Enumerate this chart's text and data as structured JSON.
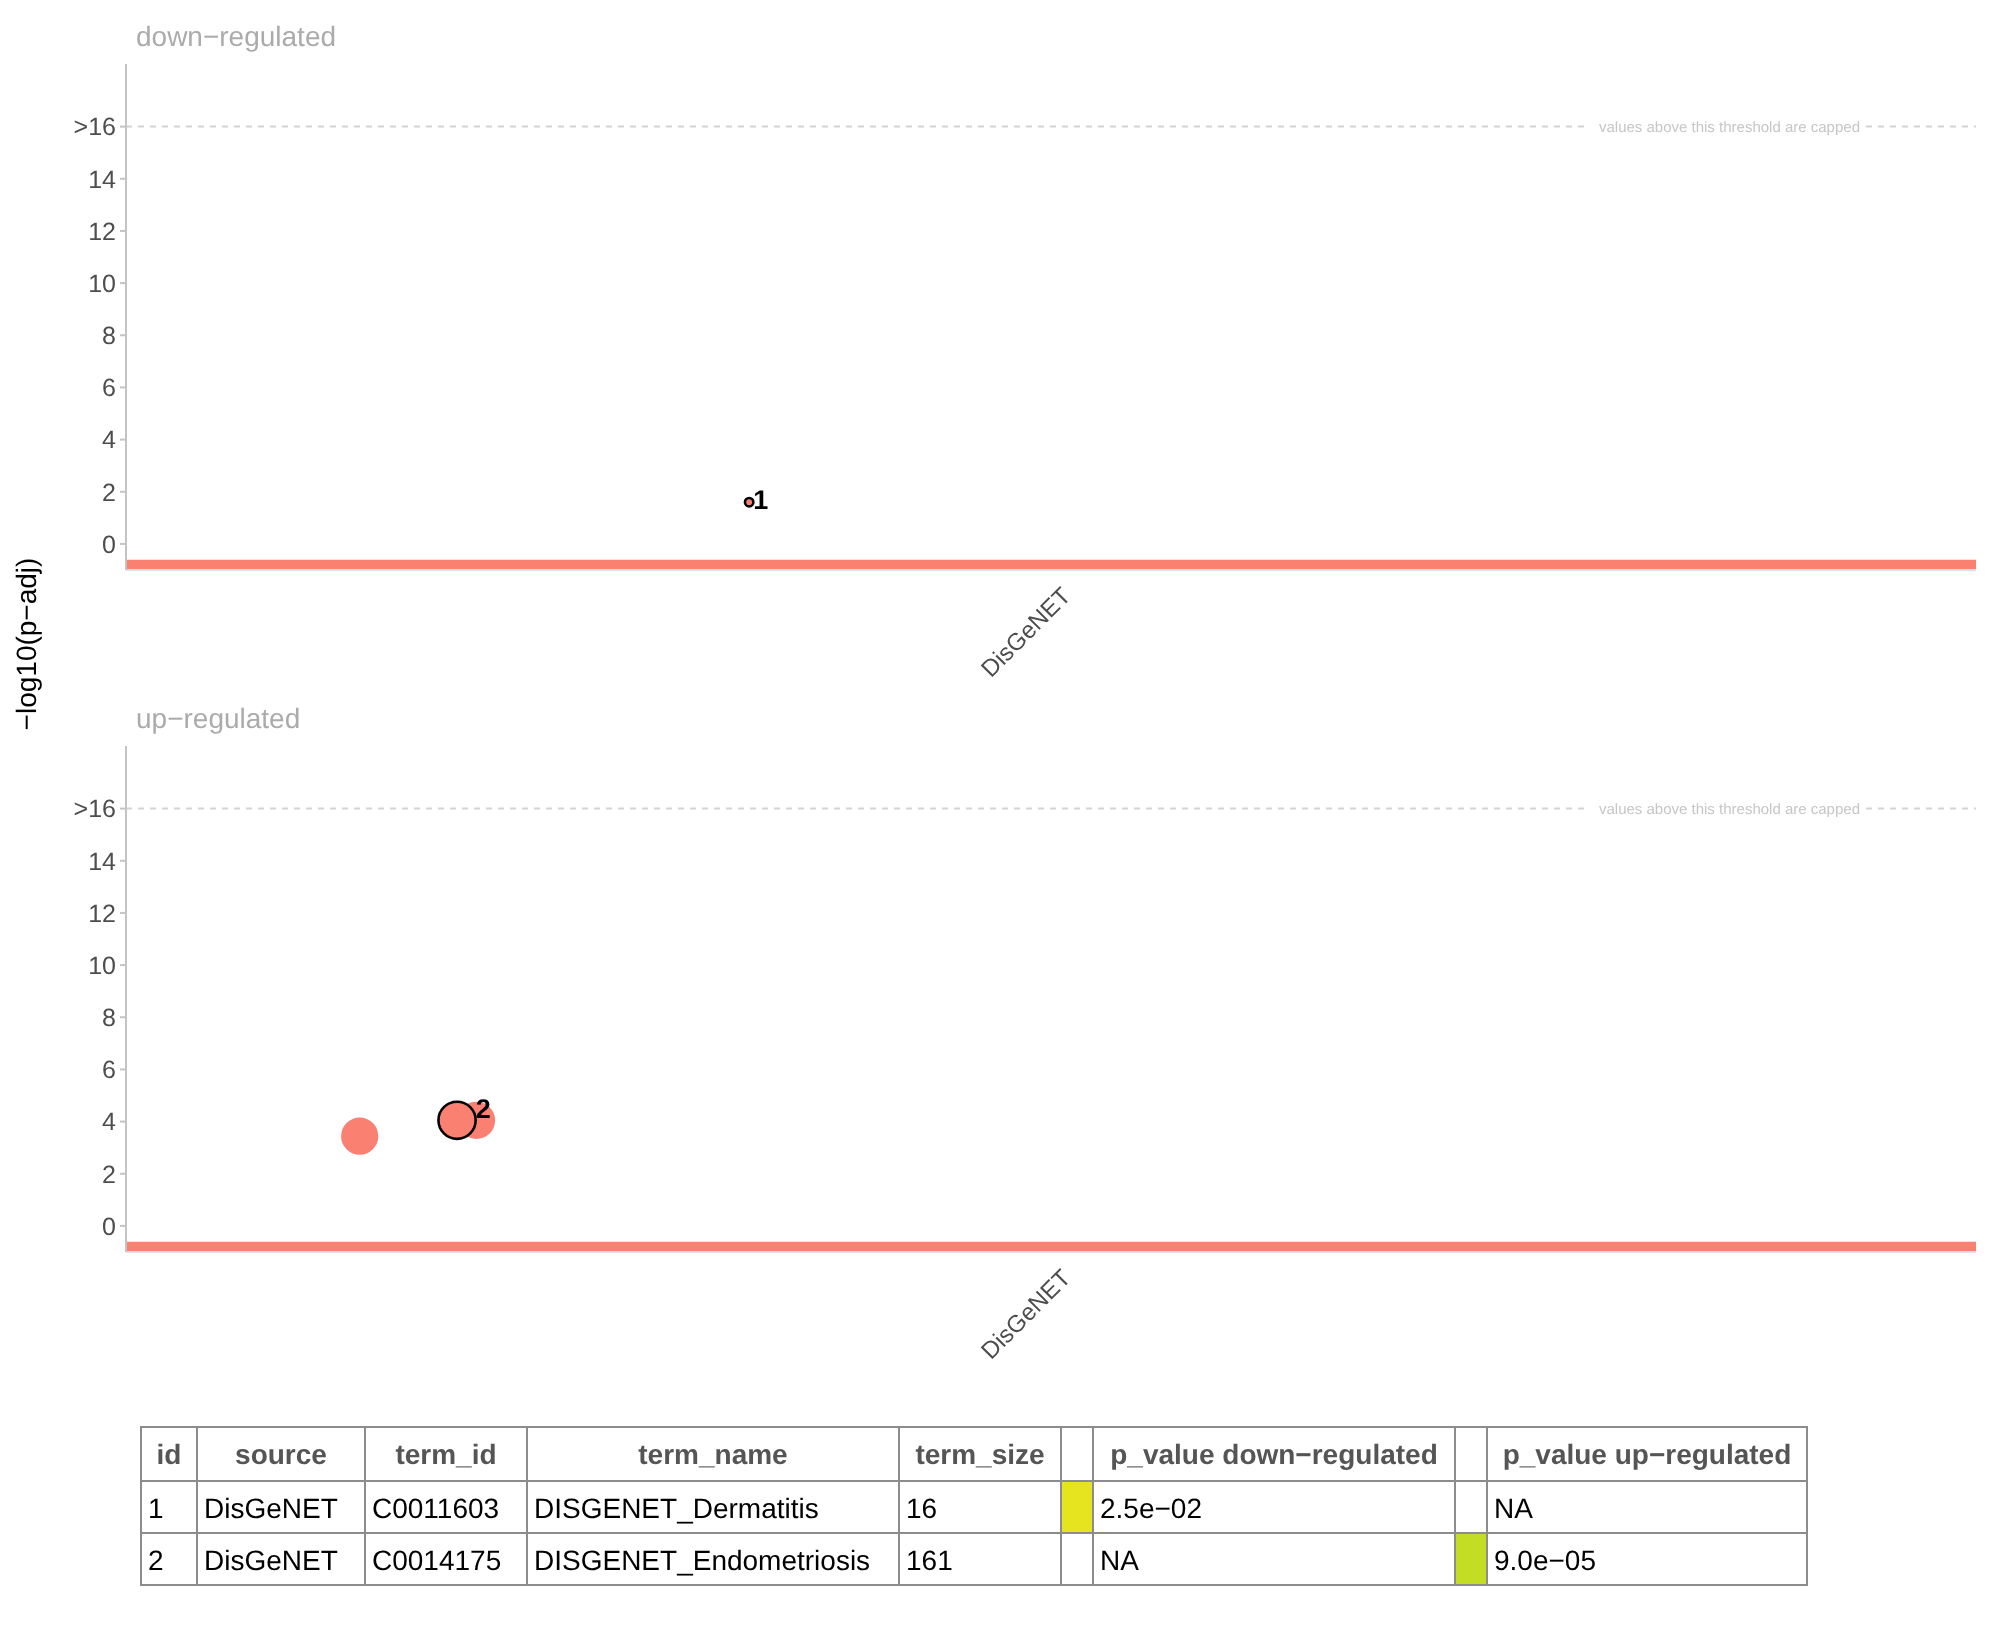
{
  "chart_data": [
    {
      "type": "scatter",
      "title": "down−regulated",
      "ylabel": "−log10(p−adj)",
      "categories": [
        null,
        null,
        null,
        null,
        null,
        null,
        null,
        null,
        null,
        null,
        null,
        null,
        null,
        null,
        null,
        null,
        null,
        null,
        null,
        null,
        null,
        null,
        null,
        null,
        null,
        null,
        null,
        null,
        null,
        null,
        null,
        null,
        null,
        null,
        null,
        null,
        null,
        null,
        null,
        null,
        null,
        null,
        null,
        null,
        null,
        null,
        null,
        null,
        "DisGeNET",
        null,
        null,
        null,
        null,
        null,
        null,
        null,
        null,
        null,
        null,
        null,
        null,
        null,
        null,
        null,
        null,
        null,
        null,
        null,
        null,
        null,
        null,
        null,
        null,
        null,
        null,
        null,
        null,
        null,
        null,
        null,
        null,
        null,
        null,
        null,
        null,
        null,
        null,
        null,
        null,
        null,
        null,
        null,
        null,
        null,
        null,
        null,
        null,
        null,
        null,
        null
      ],
      "ylim": [
        -1,
        18.4
      ],
      "yticks": [
        0,
        2,
        4,
        6,
        8,
        10,
        12,
        14,
        {
          "value": 16,
          "label": ">16"
        }
      ],
      "series": [
        {
          "type": "line",
          "color": "#fa8072",
          "values": [
            -0.8,
            -0.8,
            -0.8,
            -0.8,
            -0.8,
            -0.8,
            -0.8,
            -0.8,
            -0.8,
            -0.8,
            -0.8,
            -0.8,
            -0.8,
            -0.8,
            -0.8,
            -0.8,
            -0.8,
            -0.8,
            -0.8,
            -0.8,
            -0.8,
            -0.8,
            -0.8,
            -0.8,
            -0.8,
            -0.8,
            -0.8,
            -0.8,
            -0.8,
            -0.8,
            -0.8,
            -0.8,
            -0.8,
            -0.8,
            -0.8,
            -0.8,
            -0.8,
            -0.8,
            -0.8,
            -0.8,
            -0.8,
            -0.8,
            -0.8,
            -0.8,
            -0.8,
            -0.8,
            -0.8,
            -0.8,
            -0.8,
            -0.8,
            -0.8,
            -0.8,
            -0.8,
            -0.8,
            -0.8,
            -0.8,
            -0.8,
            -0.8,
            -0.8,
            -0.8,
            -0.8,
            -0.8,
            -0.8,
            -0.8,
            -0.8,
            -0.8,
            -0.8,
            -0.8,
            -0.8,
            -0.8,
            -0.8,
            -0.8,
            -0.8,
            -0.8,
            -0.8,
            -0.8,
            -0.8,
            -0.8,
            -0.8,
            -0.8,
            -0.8,
            -0.8,
            -0.8,
            -0.8,
            -0.8,
            -0.8,
            -0.8,
            -0.8,
            -0.8,
            -0.8,
            -0.8,
            -0.8,
            -0.8,
            -0.8,
            -0.8,
            -0.8,
            null,
            null,
            null,
            null
          ]
        },
        {
          "type": "scatter",
          "color": "#fa8072",
          "marker": "circle",
          "values": [
            null,
            null,
            null,
            null,
            null,
            null,
            null,
            null,
            null,
            null,
            null,
            null,
            null,
            null,
            null,
            null,
            null,
            null,
            null,
            null,
            null,
            null,
            null,
            null,
            null,
            null,
            null,
            null,
            null,
            null,
            null,
            null,
            1.6,
            null,
            null,
            null,
            null,
            null,
            null,
            null,
            null,
            null,
            null,
            null,
            null,
            null,
            null,
            null,
            null,
            null,
            null,
            null,
            null,
            null,
            null,
            null,
            null,
            null,
            null,
            null,
            null,
            null,
            null,
            null,
            null,
            null,
            null,
            null,
            null,
            null,
            null,
            null,
            null,
            null,
            null,
            null,
            null,
            null,
            null,
            null,
            null,
            null,
            null,
            null,
            null,
            null,
            null,
            null,
            null,
            null,
            null,
            null,
            null,
            null,
            null,
            null,
            null,
            null,
            null,
            null
          ]
        }
      ],
      "ref_lines": [
        {
          "axis": "y",
          "value": 16,
          "label": "values above this threshold are capped",
          "color": "#d3d3d3",
          "line_style": "dashed"
        }
      ],
      "annotations": [
        {
          "text": "1",
          "y": 1.6
        }
      ]
    },
    {
      "type": "bubble",
      "title": "up−regulated",
      "categories": [
        null,
        null,
        null,
        null,
        null,
        null,
        null,
        null,
        null,
        null,
        null,
        null,
        null,
        null,
        null,
        null,
        null,
        null,
        null,
        null,
        null,
        null,
        null,
        null,
        null,
        null,
        null,
        null,
        null,
        null,
        null,
        null,
        null,
        null,
        null,
        null,
        null,
        null,
        null,
        null,
        null,
        null,
        null,
        null,
        null,
        null,
        null,
        null,
        "DisGeNET",
        null,
        null,
        null,
        null,
        null,
        null,
        null,
        null,
        null,
        null,
        null,
        null,
        null,
        null,
        null,
        null,
        null,
        null,
        null,
        null,
        null,
        null,
        null,
        null,
        null,
        null,
        null,
        null,
        null,
        null,
        null,
        null,
        null,
        null,
        null,
        null,
        null,
        null,
        null,
        null,
        null,
        null,
        null,
        null,
        null,
        null,
        null,
        null,
        null,
        null,
        null
      ],
      "ylim": [
        -1,
        18.4
      ],
      "yticks": [
        0,
        2,
        4,
        6,
        8,
        10,
        12,
        14,
        {
          "value": 16,
          "label": ">16"
        }
      ],
      "series": [
        {
          "type": "line",
          "color": "#fa8072",
          "values": [
            -0.8,
            -0.8,
            -0.8,
            -0.8,
            -0.8,
            -0.8,
            -0.8,
            -0.8,
            -0.8,
            -0.8,
            -0.8,
            -0.8,
            -0.8,
            -0.8,
            -0.8,
            -0.8,
            -0.8,
            -0.8,
            -0.8,
            -0.8,
            -0.8,
            -0.8,
            -0.8,
            -0.8,
            -0.8,
            -0.8,
            -0.8,
            -0.8,
            -0.8,
            -0.8,
            -0.8,
            -0.8,
            -0.8,
            -0.8,
            -0.8,
            -0.8,
            -0.8,
            -0.8,
            -0.8,
            -0.8,
            -0.8,
            -0.8,
            -0.8,
            -0.8,
            -0.8,
            -0.8,
            -0.8,
            -0.8,
            -0.8,
            -0.8,
            -0.8,
            -0.8,
            -0.8,
            -0.8,
            -0.8,
            -0.8,
            -0.8,
            -0.8,
            -0.8,
            -0.8,
            -0.8,
            -0.8,
            -0.8,
            -0.8,
            -0.8,
            -0.8,
            -0.8,
            -0.8,
            -0.8,
            -0.8,
            -0.8,
            -0.8,
            -0.8,
            -0.8,
            -0.8,
            -0.8,
            -0.8,
            -0.8,
            -0.8,
            -0.8,
            -0.8,
            -0.8,
            -0.8,
            -0.8,
            -0.8,
            -0.8,
            -0.8,
            -0.8,
            -0.8,
            -0.8,
            -0.8,
            -0.8,
            -0.8,
            -0.8,
            -0.8,
            -0.8,
            null,
            null,
            null,
            null
          ]
        },
        {
          "type": "bubble",
          "color": "#fa8072",
          "marker": "circle",
          "values": [
            null,
            null,
            null,
            null,
            null,
            null,
            null,
            null,
            null,
            null,
            null,
            null,
            3.44,
            null,
            null,
            null,
            null,
            null,
            4.05,
            null,
            null,
            null,
            null,
            null,
            null,
            null,
            null,
            null,
            null,
            null,
            null,
            null,
            null,
            null,
            null,
            null,
            null,
            null,
            null,
            null,
            null,
            null,
            null,
            null,
            null,
            null,
            null,
            null,
            null,
            null,
            null,
            null,
            null,
            null,
            null,
            null,
            null,
            null,
            null,
            null,
            null,
            null,
            null,
            null,
            null,
            null,
            null,
            null,
            null,
            null,
            null,
            null,
            null,
            null,
            null,
            null,
            null,
            null,
            null,
            null,
            null,
            null,
            null,
            null,
            null,
            null,
            null,
            null,
            null,
            null,
            null,
            null,
            null,
            null,
            null,
            null,
            null,
            null,
            null,
            null
          ],
          "sizes": [
            null,
            null,
            null,
            null,
            null,
            null,
            null,
            null,
            null,
            null,
            null,
            null,
            1,
            null,
            null,
            null,
            null,
            null,
            1,
            null,
            null,
            null,
            null,
            null,
            null,
            null,
            null,
            null,
            null,
            null,
            null,
            null,
            null,
            null,
            null,
            null,
            null,
            null,
            null,
            null,
            null,
            null,
            null,
            null,
            null,
            null,
            null,
            null,
            null,
            null,
            null,
            null,
            null,
            null,
            null,
            null,
            null,
            null,
            null,
            null,
            null,
            null,
            null,
            null,
            null,
            null,
            null,
            null,
            null,
            null,
            null,
            null,
            null,
            null,
            null,
            null,
            null,
            null,
            null,
            null,
            null,
            null,
            null,
            null,
            null,
            null,
            null,
            null,
            null,
            null,
            null,
            null,
            null,
            null,
            null,
            null,
            null,
            null,
            null,
            null
          ]
        },
        {
          "type": "bubble",
          "color": "#fa8072",
          "marker": "circle",
          "values": [
            null,
            null,
            null,
            null,
            null,
            null,
            null,
            null,
            null,
            null,
            null,
            null,
            null,
            null,
            null,
            null,
            null,
            4.05,
            null,
            null,
            null,
            null,
            null,
            null,
            null,
            null,
            null,
            null,
            null,
            null,
            null,
            null,
            null,
            null,
            null,
            null,
            null,
            null,
            null,
            null,
            null,
            null,
            null,
            null,
            null,
            null,
            null,
            null,
            null,
            null,
            null,
            null,
            null,
            null,
            null,
            null,
            null,
            null,
            null,
            null,
            null,
            null,
            null,
            null,
            null,
            null,
            null,
            null,
            null,
            null,
            null,
            null,
            null,
            null,
            null,
            null,
            null,
            null,
            null,
            null,
            null,
            null,
            null,
            null,
            null,
            null,
            null,
            null,
            null,
            null,
            null,
            null,
            null,
            null,
            null,
            null,
            null,
            null,
            null,
            null
          ],
          "sizes": [
            null,
            null,
            null,
            null,
            null,
            null,
            null,
            null,
            null,
            null,
            null,
            null,
            null,
            null,
            null,
            null,
            null,
            1,
            null,
            null,
            null,
            null,
            null,
            null,
            null,
            null,
            null,
            null,
            null,
            null,
            null,
            null,
            null,
            null,
            null,
            null,
            null,
            null,
            null,
            null,
            null,
            null,
            null,
            null,
            null,
            null,
            null,
            null,
            null,
            null,
            null,
            null,
            null,
            null,
            null,
            null,
            null,
            null,
            null,
            null,
            null,
            null,
            null,
            null,
            null,
            null,
            null,
            null,
            null,
            null,
            null,
            null,
            null,
            null,
            null,
            null,
            null,
            null,
            null,
            null,
            null,
            null,
            null,
            null,
            null,
            null,
            null,
            null,
            null,
            null,
            null,
            null,
            null,
            null,
            null,
            null,
            null,
            null,
            null,
            null
          ]
        }
      ],
      "ref_lines": [
        {
          "axis": "y",
          "value": 16,
          "label": "values above this threshold are capped",
          "color": "#d3d3d3",
          "line_style": "dashed"
        }
      ],
      "annotations": [
        {
          "text": "2",
          "y": 4.05
        }
      ]
    },
    {
      "type": "other",
      "categories": [
        "id",
        "source",
        "term_id",
        "term_name",
        "term_size",
        null,
        "p_value down−regulated",
        null,
        "p_value up−regulated"
      ],
      "cell_labels": [
        [
          "1",
          "DisGeNET",
          "C0011603",
          "DISGENET_Dermatitis",
          "16",
          null,
          "2.5e−02",
          null,
          "NA"
        ],
        [
          "2",
          "DisGeNET",
          "C0014175",
          "DISGENET_Endometriosis",
          "161",
          null,
          "NA",
          null,
          "9.0e−05"
        ]
      ],
      "colors": [
        [
          null,
          null,
          null,
          null,
          null,
          "#e6e41f",
          null,
          null,
          null
        ],
        [
          null,
          null,
          null,
          null,
          null,
          null,
          null,
          "#c3dc24",
          null
        ]
      ]
    }
  ]
}
